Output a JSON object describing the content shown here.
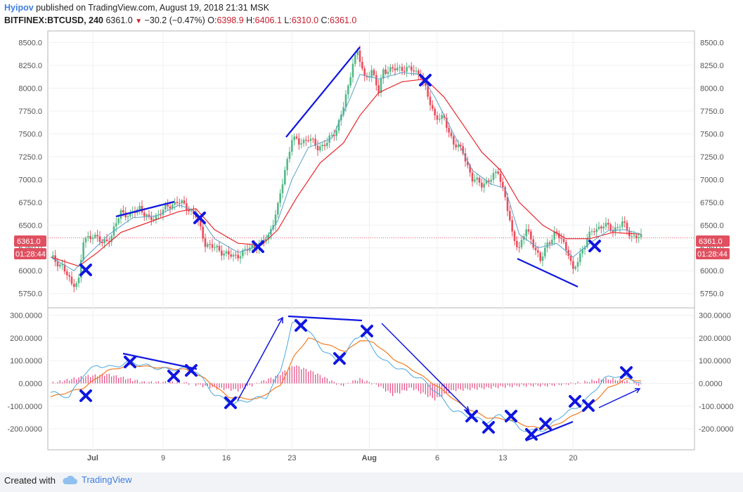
{
  "header": {
    "author": "Hyipov",
    "published": "published on TradingView.com, August 19, 2018 21:31 MSK",
    "symbol": "BITFINEX:BTCUSD, 240",
    "last": "6361.0",
    "change": "−30.2 (−0.47%)",
    "open_label": "O:",
    "open": "6398.9",
    "high_label": "H:",
    "high": "6406.1",
    "low_label": "L:",
    "low": "6310.0",
    "close_label": "C:",
    "close": "6361.0"
  },
  "price_badge": {
    "price": "6361.0",
    "countdown": "01:28:44"
  },
  "footer": {
    "created_with": "Created with",
    "brand": "TradingView"
  },
  "colors": {
    "up": "#53b987",
    "down": "#eb4d5c",
    "fast_ma": "#5aa0c8",
    "slow_ma": "#e8262c",
    "annotation": "#1016e0",
    "macd": "#4aa8e0",
    "signal": "#f57c1f",
    "hist": "#e3487f"
  },
  "chart_data": [
    {
      "type": "candlestick",
      "title": "BITFINEX:BTCUSD, 240",
      "y_ticks": [
        "8500.0",
        "8250.0",
        "8000.0",
        "7750.0",
        "7500.0",
        "7250.0",
        "7000.0",
        "6750.0",
        "6500.0",
        "6250.0",
        "6000.0",
        "5750.0"
      ],
      "ylim": [
        5640,
        8580
      ],
      "x_ticks": [
        "Jul",
        "9",
        "16",
        "23",
        "Aug",
        "6",
        "13",
        "20"
      ],
      "price_path": [
        [
          0,
          6150
        ],
        [
          5,
          6050
        ],
        [
          9,
          5850
        ],
        [
          12,
          5900
        ],
        [
          14,
          6320
        ],
        [
          18,
          6400
        ],
        [
          22,
          6300
        ],
        [
          26,
          6380
        ],
        [
          30,
          6650
        ],
        [
          34,
          6600
        ],
        [
          38,
          6700
        ],
        [
          42,
          6550
        ],
        [
          46,
          6620
        ],
        [
          50,
          6700
        ],
        [
          54,
          6760
        ],
        [
          58,
          6700
        ],
        [
          62,
          6600
        ],
        [
          66,
          6300
        ],
        [
          70,
          6250
        ],
        [
          74,
          6200
        ],
        [
          78,
          6150
        ],
        [
          82,
          6200
        ],
        [
          86,
          6260
        ],
        [
          90,
          6300
        ],
        [
          93,
          6380
        ],
        [
          97,
          6700
        ],
        [
          100,
          7100
        ],
        [
          103,
          7450
        ],
        [
          106,
          7400
        ],
        [
          110,
          7450
        ],
        [
          114,
          7350
        ],
        [
          118,
          7400
        ],
        [
          122,
          7550
        ],
        [
          125,
          7800
        ],
        [
          127,
          8000
        ],
        [
          129,
          8300
        ],
        [
          131,
          8400
        ],
        [
          134,
          8100
        ],
        [
          137,
          8200
        ],
        [
          140,
          7950
        ],
        [
          142,
          8200
        ],
        [
          146,
          8200
        ],
        [
          150,
          8220
        ],
        [
          154,
          8200
        ],
        [
          158,
          8150
        ],
        [
          161,
          7900
        ],
        [
          164,
          7700
        ],
        [
          168,
          7650
        ],
        [
          172,
          7400
        ],
        [
          176,
          7300
        ],
        [
          180,
          7000
        ],
        [
          184,
          6950
        ],
        [
          188,
          7000
        ],
        [
          191,
          7100
        ],
        [
          194,
          6800
        ],
        [
          197,
          6400
        ],
        [
          200,
          6250
        ],
        [
          203,
          6450
        ],
        [
          206,
          6300
        ],
        [
          209,
          6100
        ],
        [
          212,
          6300
        ],
        [
          215,
          6400
        ],
        [
          218,
          6350
        ],
        [
          221,
          6200
        ],
        [
          223,
          5980
        ],
        [
          226,
          6180
        ],
        [
          229,
          6350
        ],
        [
          232,
          6450
        ],
        [
          236,
          6500
        ],
        [
          240,
          6450
        ],
        [
          244,
          6520
        ],
        [
          248,
          6380
        ],
        [
          252,
          6361
        ]
      ],
      "fast_ma_path": [
        [
          0,
          6150
        ],
        [
          10,
          6000
        ],
        [
          15,
          6150
        ],
        [
          25,
          6400
        ],
        [
          35,
          6580
        ],
        [
          45,
          6600
        ],
        [
          55,
          6720
        ],
        [
          62,
          6650
        ],
        [
          70,
          6350
        ],
        [
          80,
          6200
        ],
        [
          90,
          6280
        ],
        [
          97,
          6550
        ],
        [
          103,
          7000
        ],
        [
          110,
          7350
        ],
        [
          120,
          7450
        ],
        [
          128,
          7900
        ],
        [
          132,
          8150
        ],
        [
          140,
          8100
        ],
        [
          150,
          8170
        ],
        [
          158,
          8150
        ],
        [
          164,
          7900
        ],
        [
          172,
          7500
        ],
        [
          180,
          7100
        ],
        [
          188,
          6950
        ],
        [
          194,
          6900
        ],
        [
          200,
          6400
        ],
        [
          208,
          6250
        ],
        [
          216,
          6300
        ],
        [
          223,
          6150
        ],
        [
          230,
          6300
        ],
        [
          238,
          6440
        ],
        [
          245,
          6450
        ],
        [
          252,
          6400
        ]
      ],
      "slow_ma_path": [
        [
          0,
          6150
        ],
        [
          12,
          6050
        ],
        [
          20,
          6200
        ],
        [
          30,
          6420
        ],
        [
          45,
          6560
        ],
        [
          55,
          6650
        ],
        [
          62,
          6680
        ],
        [
          70,
          6450
        ],
        [
          80,
          6300
        ],
        [
          90,
          6280
        ],
        [
          97,
          6450
        ],
        [
          105,
          6800
        ],
        [
          115,
          7180
        ],
        [
          125,
          7400
        ],
        [
          132,
          7700
        ],
        [
          140,
          7950
        ],
        [
          150,
          8070
        ],
        [
          160,
          8100
        ],
        [
          168,
          7900
        ],
        [
          176,
          7600
        ],
        [
          184,
          7300
        ],
        [
          192,
          7100
        ],
        [
          200,
          6750
        ],
        [
          210,
          6500
        ],
        [
          220,
          6350
        ],
        [
          230,
          6350
        ],
        [
          240,
          6420
        ],
        [
          252,
          6400
        ]
      ]
    },
    {
      "type": "macd",
      "y_ticks": [
        "300.0000",
        "200.0000",
        "100.0000",
        "0.0000",
        "-100.0000",
        "-200.0000"
      ],
      "ylim": [
        -280,
        320
      ],
      "macd_path": [
        [
          0,
          -40
        ],
        [
          8,
          -60
        ],
        [
          14,
          40
        ],
        [
          20,
          80
        ],
        [
          26,
          70
        ],
        [
          34,
          95
        ],
        [
          42,
          75
        ],
        [
          50,
          60
        ],
        [
          56,
          65
        ],
        [
          62,
          55
        ],
        [
          70,
          -50
        ],
        [
          78,
          -90
        ],
        [
          86,
          -70
        ],
        [
          92,
          -60
        ],
        [
          98,
          50
        ],
        [
          103,
          260
        ],
        [
          106,
          270
        ],
        [
          110,
          230
        ],
        [
          116,
          150
        ],
        [
          122,
          100
        ],
        [
          126,
          130
        ],
        [
          130,
          200
        ],
        [
          133,
          220
        ],
        [
          137,
          160
        ],
        [
          142,
          100
        ],
        [
          150,
          60
        ],
        [
          158,
          20
        ],
        [
          164,
          -30
        ],
        [
          168,
          -80
        ],
        [
          172,
          -120
        ],
        [
          180,
          -150
        ],
        [
          186,
          -170
        ],
        [
          192,
          -140
        ],
        [
          196,
          -160
        ],
        [
          200,
          -200
        ],
        [
          206,
          -210
        ],
        [
          212,
          -200
        ],
        [
          218,
          -140
        ],
        [
          224,
          -110
        ],
        [
          230,
          -60
        ],
        [
          236,
          20
        ],
        [
          242,
          35
        ],
        [
          248,
          20
        ],
        [
          252,
          0
        ]
      ],
      "signal_path": [
        [
          0,
          -60
        ],
        [
          14,
          -20
        ],
        [
          24,
          55
        ],
        [
          34,
          80
        ],
        [
          46,
          70
        ],
        [
          58,
          60
        ],
        [
          66,
          20
        ],
        [
          76,
          -60
        ],
        [
          88,
          -70
        ],
        [
          98,
          -10
        ],
        [
          104,
          120
        ],
        [
          110,
          200
        ],
        [
          118,
          170
        ],
        [
          126,
          140
        ],
        [
          132,
          190
        ],
        [
          138,
          180
        ],
        [
          146,
          110
        ],
        [
          156,
          50
        ],
        [
          166,
          -20
        ],
        [
          176,
          -100
        ],
        [
          186,
          -150
        ],
        [
          196,
          -160
        ],
        [
          204,
          -190
        ],
        [
          212,
          -200
        ],
        [
          220,
          -160
        ],
        [
          230,
          -100
        ],
        [
          238,
          -20
        ],
        [
          246,
          20
        ],
        [
          252,
          10
        ]
      ],
      "hist_path": [
        [
          0,
          0
        ],
        [
          14,
          30
        ],
        [
          24,
          40
        ],
        [
          40,
          5
        ],
        [
          56,
          5
        ],
        [
          70,
          -20
        ],
        [
          80,
          -30
        ],
        [
          96,
          30
        ],
        [
          104,
          80
        ],
        [
          112,
          50
        ],
        [
          124,
          -10
        ],
        [
          132,
          20
        ],
        [
          140,
          -10
        ],
        [
          146,
          -50
        ],
        [
          154,
          -20
        ],
        [
          164,
          -70
        ],
        [
          172,
          -30
        ],
        [
          186,
          -20
        ],
        [
          200,
          -10
        ],
        [
          212,
          -10
        ],
        [
          224,
          0
        ],
        [
          236,
          20
        ],
        [
          244,
          15
        ],
        [
          252,
          -10
        ]
      ]
    }
  ]
}
